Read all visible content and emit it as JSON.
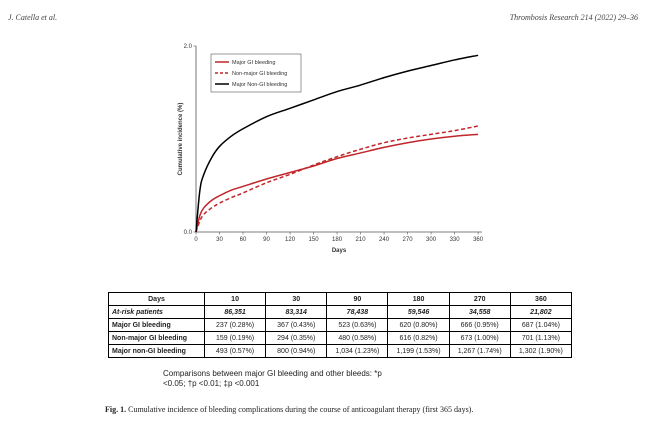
{
  "header": {
    "authors": "J. Catella et al.",
    "journal": "Thrombosis Research 214 (2022) 29–36"
  },
  "chart_data": {
    "type": "line",
    "xlabel": "Days",
    "ylabel": "Cumulative incidence (%)",
    "xlim": [
      0,
      365
    ],
    "ylim": [
      0,
      2.0
    ],
    "x_ticks": [
      0,
      30,
      60,
      90,
      120,
      150,
      180,
      210,
      240,
      270,
      300,
      330,
      360
    ],
    "y_ticks": [
      "0.0",
      "2.0"
    ],
    "legend_position": "top-left",
    "series": [
      {
        "name": "Major GI bleeding",
        "color": "#c0262a",
        "style": "solid",
        "x": [
          0,
          5,
          10,
          20,
          30,
          45,
          60,
          90,
          120,
          150,
          180,
          210,
          240,
          270,
          300,
          330,
          360
        ],
        "y": [
          0,
          0.18,
          0.26,
          0.34,
          0.39,
          0.45,
          0.49,
          0.57,
          0.64,
          0.71,
          0.79,
          0.85,
          0.91,
          0.96,
          1.0,
          1.03,
          1.05
        ]
      },
      {
        "name": "Non-major GI bleeding",
        "color": "#c0262a",
        "style": "dashed",
        "x": [
          0,
          5,
          10,
          20,
          30,
          45,
          60,
          90,
          120,
          150,
          180,
          210,
          240,
          270,
          300,
          330,
          360
        ],
        "y": [
          0,
          0.12,
          0.19,
          0.26,
          0.31,
          0.37,
          0.42,
          0.53,
          0.62,
          0.72,
          0.81,
          0.89,
          0.96,
          1.01,
          1.05,
          1.09,
          1.14
        ]
      },
      {
        "name": "Major Non-GI bleeding",
        "color": "#000000",
        "style": "solid",
        "x": [
          0,
          5,
          10,
          20,
          30,
          45,
          60,
          90,
          120,
          150,
          180,
          210,
          240,
          270,
          300,
          330,
          360
        ],
        "y": [
          0,
          0.45,
          0.62,
          0.8,
          0.92,
          1.03,
          1.11,
          1.24,
          1.33,
          1.42,
          1.51,
          1.58,
          1.66,
          1.73,
          1.79,
          1.85,
          1.9
        ]
      }
    ]
  },
  "table": {
    "header": [
      "Days",
      "10",
      "30",
      "90",
      "180",
      "270",
      "360"
    ],
    "rows": [
      [
        "At-risk patients",
        "86,351",
        "83,314",
        "78,438",
        "59,546",
        "34,558",
        "21,802"
      ],
      [
        "Major GI bleeding",
        "237 (0.28%)",
        "367 (0.43%)",
        "523 (0.63%)",
        "620 (0.80%)",
        "666 (0.95%)",
        "687 (1.04%)"
      ],
      [
        "Non-major GI bleeding",
        "159 (0.19%)",
        "294 (0.35%)",
        "480 (0.58%)",
        "616 (0.82%)",
        "673 (1.00%)",
        "701 (1.13%)"
      ],
      [
        "Major non-GI bleeding",
        "493 (0.57%)",
        "800 (0.94%)",
        "1,034 (1.23%)",
        "1,199 (1.53%)",
        "1,267 (1.74%)",
        "1,302 (1.90%)"
      ]
    ]
  },
  "comparisons": "Comparisons between major GI bleeding and other bleeds: *p <0.05; †p <0.01; ‡p <0.001",
  "caption": {
    "label": "Fig. 1.",
    "text": "Cumulative incidence of bleeding complications during the course of anticoagulant therapy (first 365 days)."
  }
}
